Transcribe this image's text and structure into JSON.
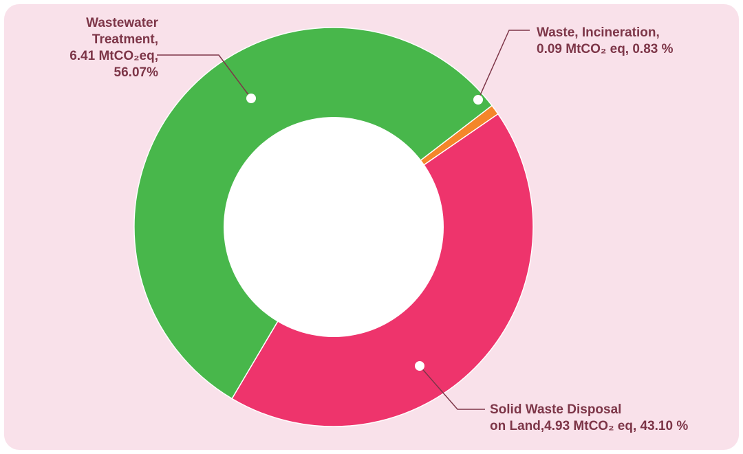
{
  "chart_data": {
    "type": "pie",
    "donut": true,
    "title": "",
    "segments": [
      {
        "name": "Wastewater Treatment",
        "value": 6.41,
        "unit": "MtCO2eq",
        "percent": 56.07,
        "color": "#48b74b",
        "label_lines": [
          "Wastewater",
          "Treatment,",
          "6.41 MtCO₂eq,",
          "56.07%"
        ]
      },
      {
        "name": "Waste, Incineration",
        "value": 0.09,
        "unit": "MtCO2 eq",
        "percent": 0.83,
        "color": "#f4862a",
        "label_lines": [
          "Waste, Incineration,",
          "0.09 MtCO₂ eq, 0.83 %"
        ]
      },
      {
        "name": "Solid Waste Disposal on Land",
        "value": 4.93,
        "unit": "MtCO2 eq",
        "percent": 43.1,
        "color": "#ee346c",
        "label_lines": [
          "Solid Waste Disposal",
          "on Land,4.93 MtCO₂ eq, 43.10 %"
        ]
      }
    ],
    "legend": "none",
    "label_color": "#7d3648",
    "background_color": "#f9e1ea"
  }
}
